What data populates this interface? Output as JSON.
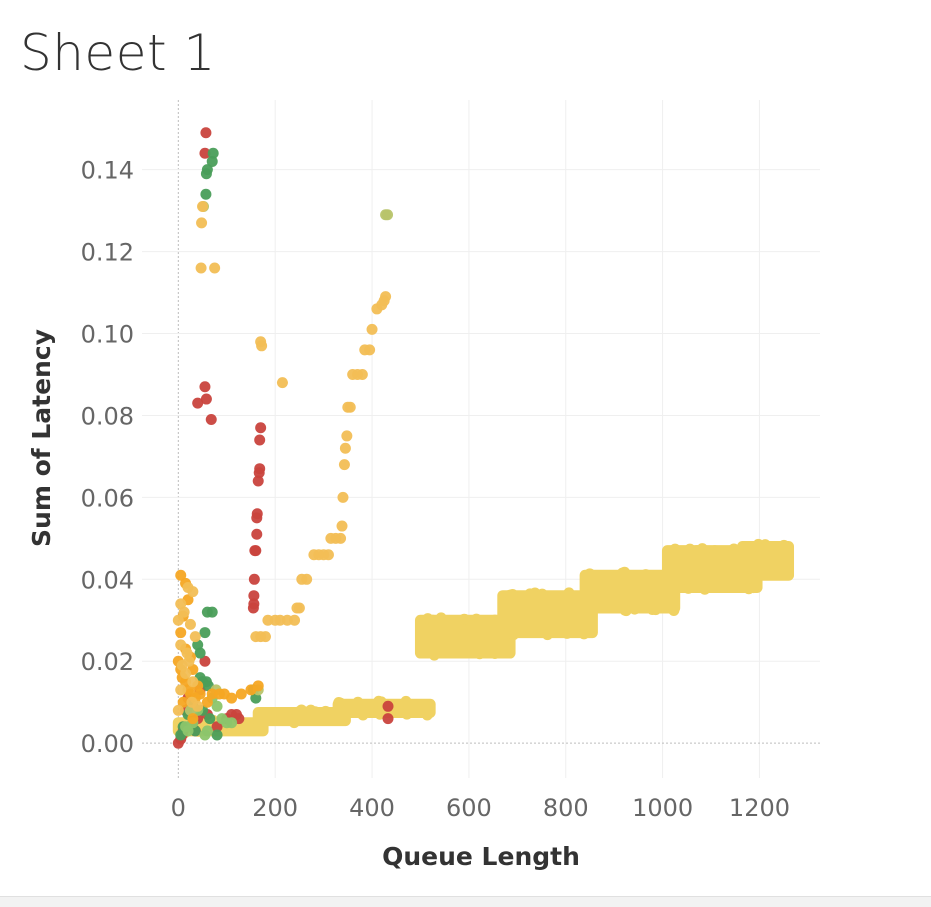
{
  "sheet": {
    "title": "Sheet 1"
  },
  "chart_data": {
    "type": "scatter",
    "title": "Sheet 1",
    "xlabel": "Queue Length",
    "ylabel": "Sum of Latency",
    "xlim": [
      -75,
      1325
    ],
    "ylim": [
      -0.0085,
      0.157
    ],
    "x_ticks": [
      0,
      200,
      400,
      600,
      800,
      1000,
      1200
    ],
    "y_ticks": [
      0.0,
      0.02,
      0.04,
      0.06,
      0.08,
      0.1,
      0.12,
      0.14
    ],
    "grid": true,
    "legend": "none",
    "colors": {
      "red": "#c9433d",
      "green": "#4a9e5a",
      "light_green": "#8cc56b",
      "olive": "#b8c46a",
      "orange": "#f5a623",
      "yellow_orange": "#f2be55",
      "yellow": "#f0d262"
    },
    "point_groups": [
      {
        "color": "red",
        "points": [
          [
            57,
            0.149
          ],
          [
            55,
            0.144
          ],
          [
            55,
            0.087
          ],
          [
            58,
            0.084
          ],
          [
            40,
            0.083
          ],
          [
            68,
            0.079
          ],
          [
            170,
            0.077
          ],
          [
            168,
            0.074
          ],
          [
            168,
            0.067
          ],
          [
            167,
            0.066
          ],
          [
            165,
            0.064
          ],
          [
            163,
            0.056
          ],
          [
            162,
            0.055
          ],
          [
            162,
            0.051
          ],
          [
            160,
            0.047
          ],
          [
            158,
            0.047
          ],
          [
            157,
            0.04
          ],
          [
            156,
            0.036
          ],
          [
            156,
            0.034
          ],
          [
            155,
            0.033
          ],
          [
            5,
            0.001
          ],
          [
            10,
            0.003
          ],
          [
            15,
            0.008
          ],
          [
            20,
            0.011
          ],
          [
            25,
            0.009
          ],
          [
            30,
            0.005
          ],
          [
            35,
            0.003
          ],
          [
            40,
            0.006
          ],
          [
            50,
            0.015
          ],
          [
            60,
            0.007
          ],
          [
            80,
            0.004
          ],
          [
            100,
            0.006
          ],
          [
            110,
            0.007
          ],
          [
            120,
            0.007
          ],
          [
            125,
            0.006
          ],
          [
            0,
            0.0
          ],
          [
            8,
            0.002
          ],
          [
            45,
            0.013
          ],
          [
            55,
            0.02
          ],
          [
            433,
            0.009
          ],
          [
            433,
            0.006
          ]
        ]
      },
      {
        "color": "green",
        "points": [
          [
            72,
            0.144
          ],
          [
            70,
            0.142
          ],
          [
            60,
            0.14
          ],
          [
            58,
            0.139
          ],
          [
            57,
            0.134
          ],
          [
            60,
            0.032
          ],
          [
            70,
            0.032
          ],
          [
            55,
            0.027
          ],
          [
            40,
            0.024
          ],
          [
            45,
            0.022
          ],
          [
            50,
            0.015
          ],
          [
            58,
            0.015
          ],
          [
            62,
            0.014
          ],
          [
            45,
            0.016
          ],
          [
            155,
            0.013
          ],
          [
            160,
            0.011
          ],
          [
            35,
            0.003
          ],
          [
            80,
            0.002
          ],
          [
            10,
            0.004
          ],
          [
            20,
            0.007
          ],
          [
            30,
            0.009
          ],
          [
            50,
            0.008
          ],
          [
            65,
            0.006
          ],
          [
            5,
            0.002
          ]
        ]
      },
      {
        "color": "light_green",
        "points": [
          [
            70,
            0.011
          ],
          [
            80,
            0.009
          ],
          [
            90,
            0.006
          ],
          [
            100,
            0.005
          ],
          [
            110,
            0.005
          ],
          [
            40,
            0.008
          ],
          [
            30,
            0.005
          ],
          [
            20,
            0.003
          ],
          [
            15,
            0.004
          ],
          [
            55,
            0.002
          ],
          [
            60,
            0.003
          ]
        ]
      },
      {
        "color": "olive",
        "points": [
          [
            52,
            0.131
          ],
          [
            428,
            0.129
          ],
          [
            432,
            0.129
          ],
          [
            165,
            0.013
          ],
          [
            78,
            0.013
          ],
          [
            25,
            0.008
          ]
        ]
      },
      {
        "color": "orange",
        "points": [
          [
            5,
            0.041
          ],
          [
            15,
            0.039
          ],
          [
            20,
            0.035
          ],
          [
            10,
            0.031
          ],
          [
            5,
            0.027
          ],
          [
            15,
            0.023
          ],
          [
            25,
            0.021
          ],
          [
            5,
            0.018
          ],
          [
            15,
            0.015
          ],
          [
            25,
            0.012
          ],
          [
            35,
            0.011
          ],
          [
            40,
            0.014
          ],
          [
            45,
            0.012
          ],
          [
            10,
            0.01
          ],
          [
            20,
            0.013
          ],
          [
            30,
            0.006
          ],
          [
            60,
            0.01
          ],
          [
            70,
            0.012
          ],
          [
            85,
            0.012
          ],
          [
            95,
            0.012
          ],
          [
            110,
            0.011
          ],
          [
            130,
            0.012
          ],
          [
            150,
            0.013
          ],
          [
            165,
            0.014
          ],
          [
            0,
            0.02
          ],
          [
            8,
            0.016
          ],
          [
            30,
            0.018
          ]
        ]
      },
      {
        "color": "yellow_orange",
        "points": [
          [
            48,
            0.127
          ],
          [
            50,
            0.131
          ],
          [
            47,
            0.116
          ],
          [
            75,
            0.116
          ],
          [
            170,
            0.098
          ],
          [
            172,
            0.097
          ],
          [
            215,
            0.088
          ],
          [
            428,
            0.109
          ],
          [
            425,
            0.108
          ],
          [
            420,
            0.107
          ],
          [
            410,
            0.106
          ],
          [
            400,
            0.101
          ],
          [
            395,
            0.096
          ],
          [
            385,
            0.096
          ],
          [
            380,
            0.09
          ],
          [
            370,
            0.09
          ],
          [
            360,
            0.09
          ],
          [
            355,
            0.082
          ],
          [
            350,
            0.082
          ],
          [
            348,
            0.075
          ],
          [
            345,
            0.072
          ],
          [
            343,
            0.068
          ],
          [
            340,
            0.06
          ],
          [
            338,
            0.053
          ],
          [
            335,
            0.05
          ],
          [
            325,
            0.05
          ],
          [
            315,
            0.05
          ],
          [
            310,
            0.046
          ],
          [
            300,
            0.046
          ],
          [
            290,
            0.046
          ],
          [
            280,
            0.046
          ],
          [
            265,
            0.04
          ],
          [
            255,
            0.04
          ],
          [
            250,
            0.033
          ],
          [
            245,
            0.033
          ],
          [
            240,
            0.03
          ],
          [
            225,
            0.03
          ],
          [
            210,
            0.03
          ],
          [
            200,
            0.03
          ],
          [
            185,
            0.03
          ],
          [
            180,
            0.026
          ],
          [
            170,
            0.026
          ],
          [
            160,
            0.026
          ],
          [
            20,
            0.038
          ],
          [
            30,
            0.037
          ],
          [
            5,
            0.034
          ],
          [
            12,
            0.032
          ],
          [
            25,
            0.029
          ],
          [
            35,
            0.026
          ],
          [
            5,
            0.024
          ],
          [
            18,
            0.022
          ],
          [
            8,
            0.019
          ],
          [
            15,
            0.017
          ],
          [
            22,
            0.02
          ],
          [
            30,
            0.015
          ],
          [
            5,
            0.013
          ],
          [
            28,
            0.01
          ],
          [
            40,
            0.009
          ],
          [
            0,
            0.03
          ],
          [
            0,
            0.008
          ]
        ]
      }
    ],
    "point_bands": [
      {
        "color": "yellow",
        "x_range": [
          0,
          175
        ],
        "y_range": [
          0.003,
          0.005
        ]
      },
      {
        "color": "yellow",
        "x_range": [
          165,
          345
        ],
        "y_range": [
          0.0055,
          0.0075
        ]
      },
      {
        "color": "yellow",
        "x_range": [
          330,
          520
        ],
        "y_range": [
          0.0075,
          0.0095
        ]
      },
      {
        "color": "yellow",
        "x_range": [
          500,
          685
        ],
        "y_range": [
          0.022,
          0.03
        ]
      },
      {
        "color": "yellow",
        "x_range": [
          670,
          855
        ],
        "y_range": [
          0.027,
          0.036
        ]
      },
      {
        "color": "yellow",
        "x_range": [
          840,
          1025
        ],
        "y_range": [
          0.033,
          0.041
        ]
      },
      {
        "color": "yellow",
        "x_range": [
          1010,
          1195
        ],
        "y_range": [
          0.038,
          0.047
        ]
      },
      {
        "color": "yellow",
        "x_range": [
          1165,
          1260
        ],
        "y_range": [
          0.041,
          0.048
        ]
      }
    ]
  }
}
